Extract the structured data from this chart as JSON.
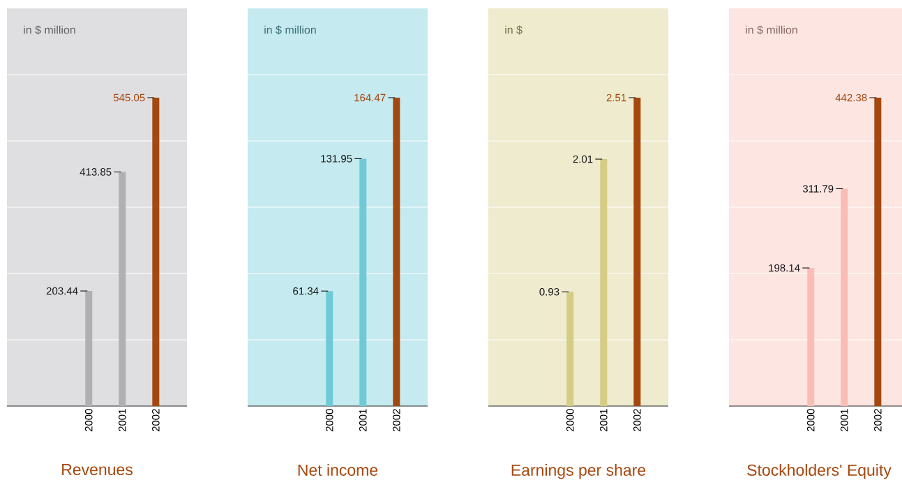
{
  "chart_data": [
    {
      "type": "bar",
      "title": "Revenues",
      "subtitle": "in $ million",
      "categories": [
        "2000",
        "2001",
        "2002"
      ],
      "values": [
        203.44,
        413.85,
        545.05
      ],
      "colors": [
        "#b0b0b3",
        "#b0b0b3",
        "#a5480f"
      ],
      "data_labels": true,
      "grid": "y",
      "tick_labels": "x"
    },
    {
      "type": "bar",
      "title": "Net income",
      "subtitle": "in $ million",
      "categories": [
        "2000",
        "2001",
        "2002"
      ],
      "values": [
        61.34,
        131.95,
        164.47
      ],
      "colors": [
        "#6fcad6",
        "#6fcad6",
        "#a5480f"
      ],
      "data_labels": true,
      "grid": "y",
      "tick_labels": "x"
    },
    {
      "type": "bar",
      "title": "Earnings per share",
      "subtitle": "in $",
      "categories": [
        "2000",
        "2001",
        "2002"
      ],
      "values": [
        0.93,
        2.01,
        2.51
      ],
      "colors": [
        "#d5cc85",
        "#d5cc85",
        "#a5480f"
      ],
      "data_labels": true,
      "grid": "y",
      "tick_labels": "x"
    },
    {
      "type": "bar",
      "title": "Stockholders' Equity",
      "subtitle": "in $ million",
      "categories": [
        "2000",
        "2001",
        "2002"
      ],
      "values": [
        198.14,
        311.79,
        442.38
      ],
      "colors": [
        "#f9bdb5",
        "#f9bdb5",
        "#a5480f"
      ],
      "data_labels": true,
      "grid": "y",
      "tick_labels": "x"
    }
  ]
}
